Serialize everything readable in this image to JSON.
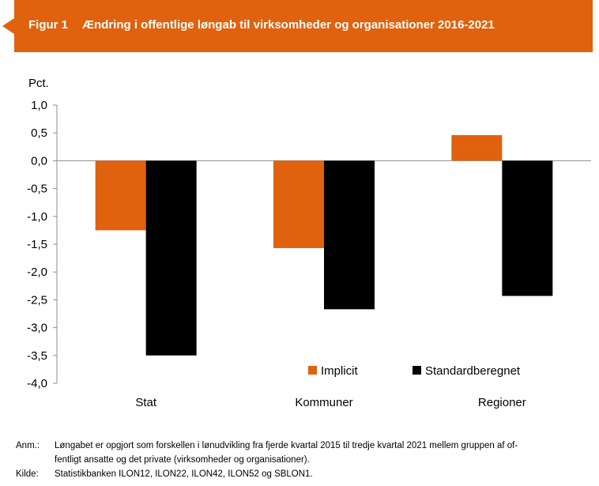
{
  "figure": {
    "label": "Figur 1",
    "title": "Ændring i offentlige løngab til virksomheder og organisationer 2016-2021",
    "header_color": "#E0610E"
  },
  "chart_data": {
    "type": "bar",
    "ylabel": "Pct.",
    "ylim": [
      -4.0,
      1.0
    ],
    "ytick_step": 0.5,
    "yticks": [
      "1,0",
      "0,5",
      "0,0",
      "-0,5",
      "-1,0",
      "-1,5",
      "-2,0",
      "-2,5",
      "-3,0",
      "-3,5",
      "-4,0"
    ],
    "categories": [
      "Stat",
      "Kommuner",
      "Regioner"
    ],
    "series": [
      {
        "name": "Implicit",
        "color": "#E0610E",
        "values": [
          -1.25,
          -1.57,
          0.46
        ]
      },
      {
        "name": "Standardberegnet",
        "color": "#000000",
        "values": [
          -3.5,
          -2.67,
          -2.43
        ]
      }
    ],
    "legend_position": "bottom-right",
    "grid": false
  },
  "notes": {
    "anm_label": "Anm.:",
    "anm_line1": "Løngabet er opgjort som forskellen i lønudvikling fra fjerde kvartal 2015 til tredje kvartal 2021 mellem gruppen af of-",
    "anm_line2": "fentligt ansatte og det private (virksomheder og organisationer).",
    "kilde_label": "Kilde:",
    "kilde_text": "Statistikbanken ILON12, ILON22, ILON42, ILON52 og SBLON1."
  }
}
